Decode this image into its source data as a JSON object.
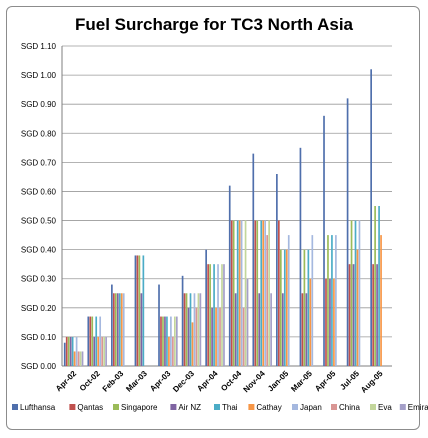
{
  "chart_data": {
    "type": "bar",
    "title": "Fuel Surcharge for TC3 North Asia",
    "xlabel": "",
    "ylabel": "",
    "ylim": [
      0,
      1.1
    ],
    "yticks": [
      "SGD 0.00",
      "SGD 0.10",
      "SGD 0.20",
      "SGD 0.30",
      "SGD 0.40",
      "SGD 0.50",
      "SGD 0.60",
      "SGD 0.70",
      "SGD 0.80",
      "SGD 0.90",
      "SGD 1.00",
      "SGD 1.10"
    ],
    "grid": true,
    "legend_position": "bottom",
    "categories": [
      "Apr-02",
      "Oct-02",
      "Feb-03",
      "Mar-03",
      "Apr-03",
      "Dec-03",
      "Apr-04",
      "Oct-04",
      "Nov-04",
      "Jan-05",
      "Mar-05",
      "Apr-05",
      "Jul-05",
      "Aug-05"
    ],
    "series": [
      {
        "name": "Lufthansa",
        "color": "#4f6fac",
        "values": [
          0.08,
          0.17,
          0.28,
          0.38,
          0.28,
          0.31,
          0.4,
          0.62,
          0.73,
          0.66,
          0.75,
          0.86,
          0.92,
          1.02
        ]
      },
      {
        "name": "Qantas",
        "color": "#c0504d",
        "values": [
          0.1,
          0.17,
          0.25,
          0.38,
          0.17,
          0.25,
          0.35,
          0.5,
          0.5,
          0.5,
          0.25,
          0.3,
          0.35,
          0.35
        ]
      },
      {
        "name": "Singapore",
        "color": "#9bbb59",
        "values": [
          0.1,
          0.17,
          0.25,
          0.38,
          0.17,
          0.25,
          0.35,
          0.5,
          0.5,
          0.4,
          0.4,
          0.45,
          0.5,
          0.55
        ]
      },
      {
        "name": "Air NZ",
        "color": "#7f64a2",
        "values": [
          0.1,
          0.1,
          0.25,
          0.25,
          0.17,
          0.2,
          0.2,
          0.25,
          0.25,
          0.25,
          0.25,
          0.3,
          0.35,
          0.35
        ]
      },
      {
        "name": "Thai",
        "color": "#4bacc6",
        "values": [
          0.1,
          0.17,
          0.25,
          0.38,
          0.17,
          0.25,
          0.35,
          0.5,
          0.5,
          0.4,
          0.4,
          0.45,
          0.5,
          0.55
        ]
      },
      {
        "name": "Cathay",
        "color": "#f79646",
        "values": [
          0.05,
          0.1,
          0.25,
          0.0,
          0.1,
          0.15,
          0.2,
          0.5,
          0.5,
          0.4,
          0.3,
          0.3,
          0.4,
          0.45
        ]
      },
      {
        "name": "Japan",
        "color": "#a5b8df",
        "values": [
          0.1,
          0.17,
          0.25,
          0.0,
          0.17,
          0.25,
          0.35,
          0.5,
          0.5,
          0.45,
          0.45,
          0.45,
          0.5,
          0.0
        ]
      },
      {
        "name": "China",
        "color": "#d99694",
        "values": [
          0.05,
          0.1,
          0.0,
          0.0,
          0.1,
          0.2,
          0.2,
          0.2,
          0.45,
          0.0,
          0.0,
          0.0,
          0.0,
          0.0
        ]
      },
      {
        "name": "Eva",
        "color": "#c3d69b",
        "values": [
          0.05,
          0.1,
          0.0,
          0.0,
          0.17,
          0.25,
          0.35,
          0.5,
          0.5,
          0.0,
          0.0,
          0.0,
          0.0,
          0.0
        ]
      },
      {
        "name": "Emirates",
        "color": "#a49fc8",
        "values": [
          0.05,
          0.1,
          0.0,
          0.0,
          0.17,
          0.25,
          0.35,
          0.3,
          0.25,
          0.0,
          0.0,
          0.0,
          0.0,
          0.0
        ]
      }
    ]
  }
}
